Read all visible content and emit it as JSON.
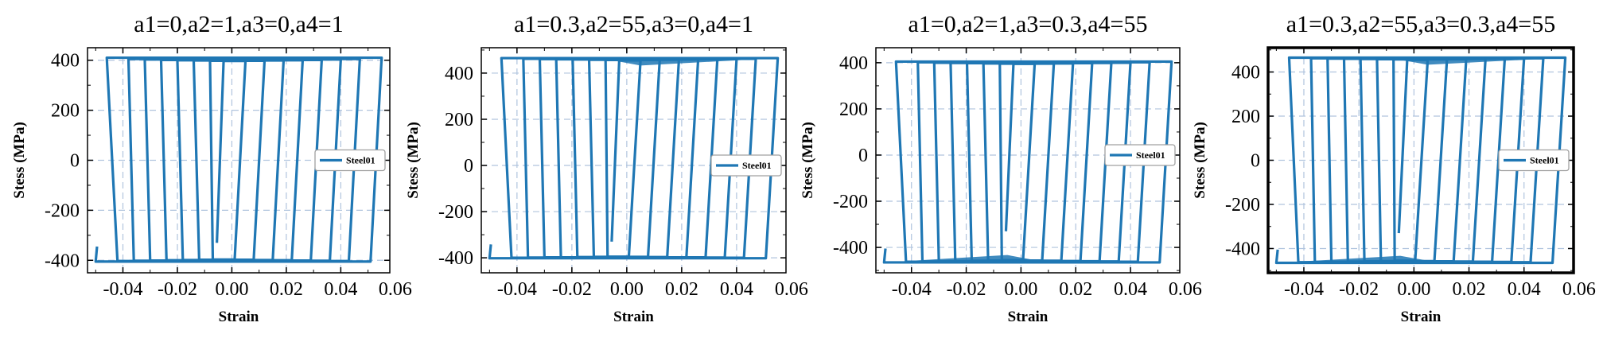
{
  "figure": {
    "line_color": "#1f77b4",
    "grid_color": "#b0c4de"
  },
  "chart_data": [
    {
      "type": "line",
      "title": "a1=0,a2=1,a3=0,a4=1",
      "xlabel": "Strain",
      "ylabel": "Stess (MPa)",
      "xlim": [
        -0.053,
        0.058
      ],
      "ylim": [
        -450,
        450
      ],
      "xticks": [
        -0.04,
        -0.02,
        0.0,
        0.02,
        0.04,
        0.06
      ],
      "xtick_labels": [
        "-0.04",
        "-0.02",
        "0.00",
        "0.02",
        "0.04",
        "0.06"
      ],
      "yticks": [
        -400,
        -200,
        0,
        200,
        400
      ],
      "ytick_labels": [
        "-400",
        "-200",
        "0",
        "200",
        "400"
      ],
      "grid": true,
      "legend": {
        "placement": "right",
        "entries": [
          "Steel01"
        ]
      },
      "series": [
        {
          "name": "Steel01",
          "loops": [
            {
              "x_min": -0.007,
              "x_max": 0.005
            },
            {
              "x_min": -0.012,
              "x_max": 0.012
            },
            {
              "x_min": -0.018,
              "x_max": 0.019
            },
            {
              "x_min": -0.024,
              "x_max": 0.026
            },
            {
              "x_min": -0.03,
              "x_max": 0.033
            },
            {
              "x_min": -0.036,
              "x_max": 0.04
            },
            {
              "x_min": -0.042,
              "x_max": 0.047
            },
            {
              "x_min": -0.05,
              "x_max": 0.055
            }
          ],
          "stress_at_tension_peak": [
            397,
            398,
            399,
            400,
            401,
            403,
            405,
            410
          ],
          "stress_at_compression_peak": [
            -397,
            -398,
            -399,
            -400,
            -401,
            -402,
            -403,
            -405
          ],
          "initial_point": {
            "x": -0.0055,
            "y": -330
          },
          "elastic_modulus_mpa": 200000
        }
      ]
    },
    {
      "type": "line",
      "title": "a1=0.3,a2=55,a3=0,a4=1",
      "xlabel": "Strain",
      "ylabel": "Stess (MPa)",
      "xlim": [
        -0.053,
        0.058
      ],
      "ylim": [
        -465,
        510
      ],
      "xticks": [
        -0.04,
        -0.02,
        0.0,
        0.02,
        0.04,
        0.06
      ],
      "xtick_labels": [
        "-0.04",
        "-0.02",
        "0.00",
        "0.02",
        "0.04",
        "0.06"
      ],
      "yticks": [
        -400,
        -200,
        0,
        200,
        400
      ],
      "ytick_labels": [
        "-400",
        "-200",
        "0",
        "200",
        "400"
      ],
      "grid": true,
      "legend": {
        "placement": "right",
        "entries": [
          "Steel01"
        ]
      },
      "series": [
        {
          "name": "Steel01",
          "loops": [
            {
              "x_min": -0.007,
              "x_max": 0.005
            },
            {
              "x_min": -0.012,
              "x_max": 0.012
            },
            {
              "x_min": -0.018,
              "x_max": 0.019
            },
            {
              "x_min": -0.024,
              "x_max": 0.026
            },
            {
              "x_min": -0.03,
              "x_max": 0.033
            },
            {
              "x_min": -0.036,
              "x_max": 0.04
            },
            {
              "x_min": -0.042,
              "x_max": 0.047
            },
            {
              "x_min": -0.05,
              "x_max": 0.055
            }
          ],
          "stress_at_tension_peak": [
            455,
            457,
            458,
            459,
            460,
            461,
            462,
            465
          ],
          "stress_at_compression_peak": [
            -395,
            -396,
            -397,
            -398,
            -398,
            -399,
            -400,
            -402
          ],
          "initial_point": {
            "x": -0.0055,
            "y": -330
          },
          "elastic_modulus_mpa": 200000
        }
      ]
    },
    {
      "type": "line",
      "title": "a1=0,a2=1,a3=0.3,a4=55",
      "xlabel": "Strain",
      "ylabel": "Stess (MPa)",
      "xlim": [
        -0.053,
        0.058
      ],
      "ylim": [
        -510,
        465
      ],
      "xticks": [
        -0.04,
        -0.02,
        0.0,
        0.02,
        0.04,
        0.06
      ],
      "xtick_labels": [
        "-0.04",
        "-0.02",
        "0.00",
        "0.02",
        "0.04",
        "0.06"
      ],
      "yticks": [
        -400,
        -200,
        0,
        200,
        400
      ],
      "ytick_labels": [
        "-400",
        "-200",
        "0",
        "200",
        "400"
      ],
      "grid": true,
      "legend": {
        "placement": "right",
        "entries": [
          "Steel01"
        ]
      },
      "series": [
        {
          "name": "Steel01",
          "loops": [
            {
              "x_min": -0.007,
              "x_max": 0.005
            },
            {
              "x_min": -0.012,
              "x_max": 0.012
            },
            {
              "x_min": -0.018,
              "x_max": 0.019
            },
            {
              "x_min": -0.024,
              "x_max": 0.026
            },
            {
              "x_min": -0.03,
              "x_max": 0.033
            },
            {
              "x_min": -0.036,
              "x_max": 0.04
            },
            {
              "x_min": -0.042,
              "x_max": 0.047
            },
            {
              "x_min": -0.05,
              "x_max": 0.055
            }
          ],
          "stress_at_tension_peak": [
            395,
            396,
            397,
            398,
            399,
            400,
            402,
            405
          ],
          "stress_at_compression_peak": [
            -455,
            -457,
            -458,
            -459,
            -460,
            -461,
            -462,
            -465
          ],
          "initial_point": {
            "x": -0.0055,
            "y": -330
          },
          "elastic_modulus_mpa": 200000
        }
      ]
    },
    {
      "type": "line",
      "title": "a1=0.3,a2=55,a3=0.3,a4=55",
      "xlabel": "Strain",
      "ylabel": "Stess (MPa)",
      "xlim": [
        -0.053,
        0.058
      ],
      "ylim": [
        -510,
        510
      ],
      "xticks": [
        -0.04,
        -0.02,
        0.0,
        0.02,
        0.04,
        0.06
      ],
      "xtick_labels": [
        "-0.04",
        "-0.02",
        "0.00",
        "0.02",
        "0.04",
        "0.06"
      ],
      "yticks": [
        -400,
        -200,
        0,
        200,
        400
      ],
      "ytick_labels": [
        "-400",
        "-200",
        "0",
        "200",
        "400"
      ],
      "grid": true,
      "legend": {
        "placement": "right",
        "entries": [
          "Steel01"
        ]
      },
      "series": [
        {
          "name": "Steel01",
          "loops": [
            {
              "x_min": -0.007,
              "x_max": 0.005
            },
            {
              "x_min": -0.012,
              "x_max": 0.012
            },
            {
              "x_min": -0.018,
              "x_max": 0.019
            },
            {
              "x_min": -0.024,
              "x_max": 0.026
            },
            {
              "x_min": -0.03,
              "x_max": 0.033
            },
            {
              "x_min": -0.036,
              "x_max": 0.04
            },
            {
              "x_min": -0.042,
              "x_max": 0.047
            },
            {
              "x_min": -0.05,
              "x_max": 0.055
            }
          ],
          "stress_at_tension_peak": [
            455,
            457,
            458,
            459,
            460,
            461,
            462,
            465
          ],
          "stress_at_compression_peak": [
            -455,
            -457,
            -458,
            -459,
            -460,
            -461,
            -462,
            -465
          ],
          "initial_point": {
            "x": -0.0055,
            "y": -330
          },
          "elastic_modulus_mpa": 200000
        }
      ]
    }
  ]
}
